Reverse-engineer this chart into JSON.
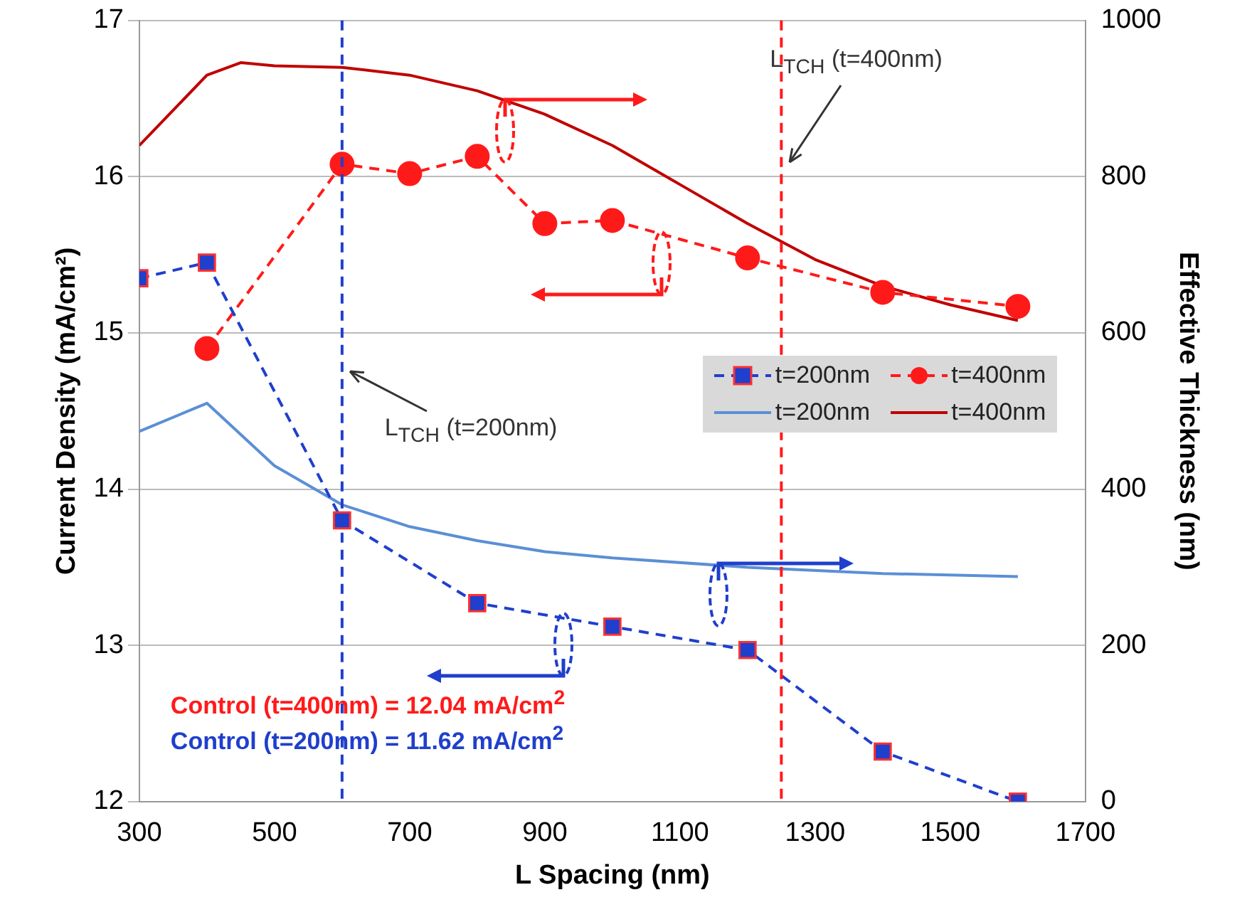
{
  "chart_data": {
    "type": "line",
    "xlabel": "L Spacing (nm)",
    "ylabel": "Current Density (mA/cm²)",
    "y2label": "Effective Thickness (nm)",
    "xlim": [
      300,
      1700
    ],
    "xticks": [
      300,
      500,
      700,
      900,
      1100,
      1300,
      1500,
      1700
    ],
    "ylim": [
      12,
      17
    ],
    "yticks": [
      12,
      13,
      14,
      15,
      16,
      17
    ],
    "y2lim": [
      0,
      1000
    ],
    "y2ticks": [
      0,
      200,
      400,
      600,
      800,
      1000
    ],
    "grid": "y",
    "legend": "right",
    "series": [
      {
        "name": "t=200nm",
        "color": "#1f3fcc",
        "marker": "square",
        "line_style": "dashed",
        "x": [
          300,
          400,
          600,
          800,
          1000,
          1200,
          1400,
          1600
        ],
        "values": [
          15.35,
          15.45,
          13.8,
          13.27,
          13.12,
          12.97,
          12.32,
          12.0
        ]
      },
      {
        "name": "t=400nm",
        "color": "#ff1a1a",
        "marker": "circle",
        "line_style": "dashed",
        "x": [
          400,
          600,
          700,
          800,
          900,
          1000,
          1200,
          1400,
          1600
        ],
        "values": [
          14.9,
          16.08,
          16.02,
          16.13,
          15.7,
          15.72,
          15.48,
          15.26,
          15.17
        ]
      },
      {
        "name": "t=200nm",
        "color": "#5b8fd5",
        "marker": "none",
        "line_style": "solid",
        "axis": "y2",
        "x": [
          300,
          400,
          500,
          600,
          700,
          800,
          900,
          1000,
          1200,
          1400,
          1600
        ],
        "values": [
          474,
          510,
          430,
          380,
          352,
          334,
          320,
          312,
          300,
          292,
          288
        ]
      },
      {
        "name": "t=400nm",
        "color": "#c00000",
        "marker": "none",
        "line_style": "solid",
        "axis": "y2",
        "x": [
          300,
          400,
          450,
          500,
          600,
          700,
          800,
          900,
          1000,
          1100,
          1200,
          1300,
          1400,
          1500,
          1600
        ],
        "values": [
          840,
          930,
          946,
          942,
          940,
          930,
          910,
          880,
          840,
          790,
          740,
          694,
          660,
          636,
          616
        ]
      }
    ],
    "ref_lines": [
      {
        "axis": "x",
        "value": 1250,
        "color": "#ff1a1a",
        "line_style": "dashed"
      },
      {
        "axis": "x",
        "value": 600,
        "color": "#1f3fcc",
        "line_style": "dashed"
      }
    ],
    "annotations": [
      "L$_{TCH}$ (t=400nm)",
      {
        "text": "L$_{TCH}$ (t=200nm)",
        "x": 600,
        "y": 14.75
      },
      "Control (t=400nm) = 12.04 mA/cm$^{2}$",
      "Control (t=200nm) = 11.62 mA/cm$^{2}$"
    ]
  }
}
